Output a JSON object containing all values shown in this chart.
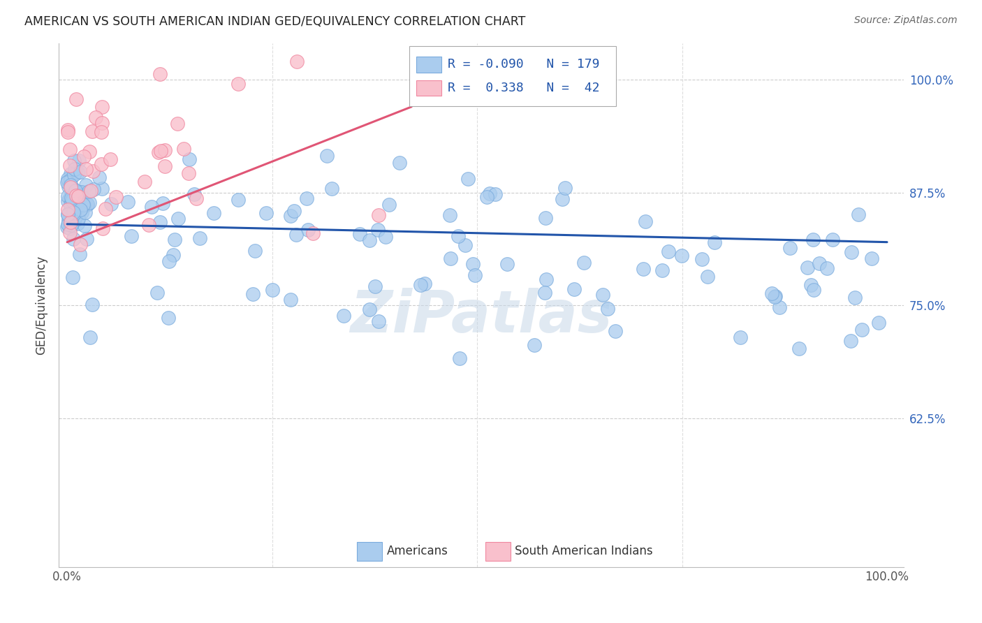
{
  "title": "AMERICAN VS SOUTH AMERICAN INDIAN GED/EQUIVALENCY CORRELATION CHART",
  "source": "Source: ZipAtlas.com",
  "ylabel": "GED/Equivalency",
  "ytick_labels": [
    "100.0%",
    "87.5%",
    "75.0%",
    "62.5%"
  ],
  "ytick_values": [
    1.0,
    0.875,
    0.75,
    0.625
  ],
  "xlim": [
    -0.01,
    1.02
  ],
  "ylim": [
    0.46,
    1.04
  ],
  "blue_color": "#aaccee",
  "blue_edge_color": "#7aabdd",
  "pink_color": "#f9c0cc",
  "pink_edge_color": "#f088a0",
  "blue_line_color": "#2255aa",
  "pink_line_color": "#e05575",
  "watermark": "ZiPatlas",
  "blue_r": -0.09,
  "blue_n": 179,
  "pink_r": 0.338,
  "pink_n": 42,
  "legend_blue_label": "R = -0.090   N = 179",
  "legend_pink_label": "R =  0.338   N =  42"
}
